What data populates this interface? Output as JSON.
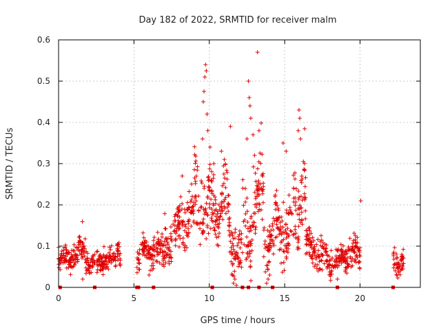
{
  "chart_data": {
    "type": "scatter",
    "title": "Day 182 of 2022, SRMTID for receiver malm",
    "xlabel": "GPS time / hours",
    "ylabel": "SRMTID / TECUs",
    "xlim": [
      0,
      24
    ],
    "ylim": [
      0,
      0.6
    ],
    "xticks": [
      0,
      5,
      10,
      15,
      20
    ],
    "xtick_labels": [
      "0",
      "5",
      "10",
      "15",
      "20"
    ],
    "yticks": [
      0,
      0.1,
      0.2,
      0.3,
      0.4,
      0.5,
      0.6
    ],
    "ytick_labels": [
      "0",
      "0.1",
      "0.2",
      "0.3",
      "0.4",
      "0.5",
      "0.6"
    ],
    "grid": true,
    "marker": "plus",
    "color": "#e00000",
    "segments": [
      {
        "x0": 0.0,
        "x1": 0.8,
        "base": 0.055,
        "amp": 0.025,
        "spread": 0.02
      },
      {
        "x0": 0.8,
        "x1": 1.3,
        "base": 0.07,
        "amp": 0.02,
        "spread": 0.02
      },
      {
        "x0": 1.3,
        "x1": 2.0,
        "base": 0.1,
        "amp": 0.035,
        "spread": 0.025
      },
      {
        "x0": 2.0,
        "x1": 2.4,
        "base": 0.06,
        "amp": 0.015,
        "spread": 0.015
      },
      {
        "x0": 2.5,
        "x1": 3.8,
        "base": 0.06,
        "amp": 0.02,
        "spread": 0.02
      },
      {
        "x0": 3.8,
        "x1": 4.1,
        "base": 0.1,
        "amp": 0.03,
        "spread": 0.02
      },
      {
        "x0": 5.2,
        "x1": 6.3,
        "base": 0.075,
        "amp": 0.025,
        "spread": 0.025
      },
      {
        "x0": 6.3,
        "x1": 7.0,
        "base": 0.09,
        "amp": 0.03,
        "spread": 0.025
      },
      {
        "x0": 7.0,
        "x1": 8.0,
        "base": 0.13,
        "amp": 0.04,
        "spread": 0.035
      },
      {
        "x0": 8.0,
        "x1": 9.0,
        "base": 0.15,
        "amp": 0.05,
        "spread": 0.04
      },
      {
        "x0": 9.0,
        "x1": 10.3,
        "base": 0.22,
        "amp": 0.09,
        "spread": 0.06
      },
      {
        "x0": 10.3,
        "x1": 11.3,
        "base": 0.18,
        "amp": 0.06,
        "spread": 0.05
      },
      {
        "x0": 11.3,
        "x1": 12.2,
        "base": 0.09,
        "amp": 0.05,
        "spread": 0.05
      },
      {
        "x0": 12.2,
        "x1": 13.6,
        "base": 0.18,
        "amp": 0.09,
        "spread": 0.06
      },
      {
        "x0": 13.6,
        "x1": 14.3,
        "base": 0.09,
        "amp": 0.05,
        "spread": 0.04
      },
      {
        "x0": 14.3,
        "x1": 15.5,
        "base": 0.16,
        "amp": 0.06,
        "spread": 0.05
      },
      {
        "x0": 15.5,
        "x1": 16.4,
        "base": 0.19,
        "amp": 0.08,
        "spread": 0.06
      },
      {
        "x0": 16.4,
        "x1": 17.8,
        "base": 0.09,
        "amp": 0.03,
        "spread": 0.03
      },
      {
        "x0": 17.8,
        "x1": 19.2,
        "base": 0.06,
        "amp": 0.02,
        "spread": 0.02
      },
      {
        "x0": 19.2,
        "x1": 20.0,
        "base": 0.08,
        "amp": 0.04,
        "spread": 0.03
      },
      {
        "x0": 22.2,
        "x1": 22.9,
        "base": 0.065,
        "amp": 0.02,
        "spread": 0.02
      }
    ],
    "peaks": [
      {
        "x": 9.75,
        "y": 0.54
      },
      {
        "x": 9.8,
        "y": 0.525
      },
      {
        "x": 9.7,
        "y": 0.51
      },
      {
        "x": 9.65,
        "y": 0.475
      },
      {
        "x": 9.6,
        "y": 0.45
      },
      {
        "x": 9.85,
        "y": 0.42
      },
      {
        "x": 9.9,
        "y": 0.38
      },
      {
        "x": 9.55,
        "y": 0.36
      },
      {
        "x": 10.05,
        "y": 0.34
      },
      {
        "x": 13.2,
        "y": 0.57
      },
      {
        "x": 12.6,
        "y": 0.5
      },
      {
        "x": 12.65,
        "y": 0.46
      },
      {
        "x": 12.7,
        "y": 0.44
      },
      {
        "x": 12.75,
        "y": 0.41
      },
      {
        "x": 13.3,
        "y": 0.38
      },
      {
        "x": 11.4,
        "y": 0.39
      },
      {
        "x": 12.5,
        "y": 0.36
      },
      {
        "x": 12.9,
        "y": 0.37
      },
      {
        "x": 15.95,
        "y": 0.43
      },
      {
        "x": 16.0,
        "y": 0.41
      },
      {
        "x": 15.9,
        "y": 0.38
      },
      {
        "x": 16.05,
        "y": 0.36
      },
      {
        "x": 14.9,
        "y": 0.35
      },
      {
        "x": 15.1,
        "y": 0.33
      },
      {
        "x": 20.05,
        "y": 0.21
      },
      {
        "x": 8.2,
        "y": 0.27
      },
      {
        "x": 10.3,
        "y": 0.3
      },
      {
        "x": 10.8,
        "y": 0.33
      },
      {
        "x": 11.0,
        "y": 0.31
      },
      {
        "x": 13.0,
        "y": 0.32
      }
    ],
    "dips": [
      {
        "x": 11.6,
        "y": 0.01
      },
      {
        "x": 11.7,
        "y": 0.02
      },
      {
        "x": 11.8,
        "y": 0.005
      },
      {
        "x": 13.8,
        "y": 0.01
      },
      {
        "x": 13.9,
        "y": 0.02
      },
      {
        "x": 14.0,
        "y": 0.03
      },
      {
        "x": 1.6,
        "y": 0.02
      },
      {
        "x": 6.0,
        "y": 0.03
      },
      {
        "x": 18.5,
        "y": 0.02
      }
    ],
    "zero_markers": [
      0.1,
      2.4,
      5.2,
      5.3,
      6.3,
      10.2,
      12.2,
      12.6,
      13.3,
      14.2,
      18.5,
      22.2
    ]
  }
}
